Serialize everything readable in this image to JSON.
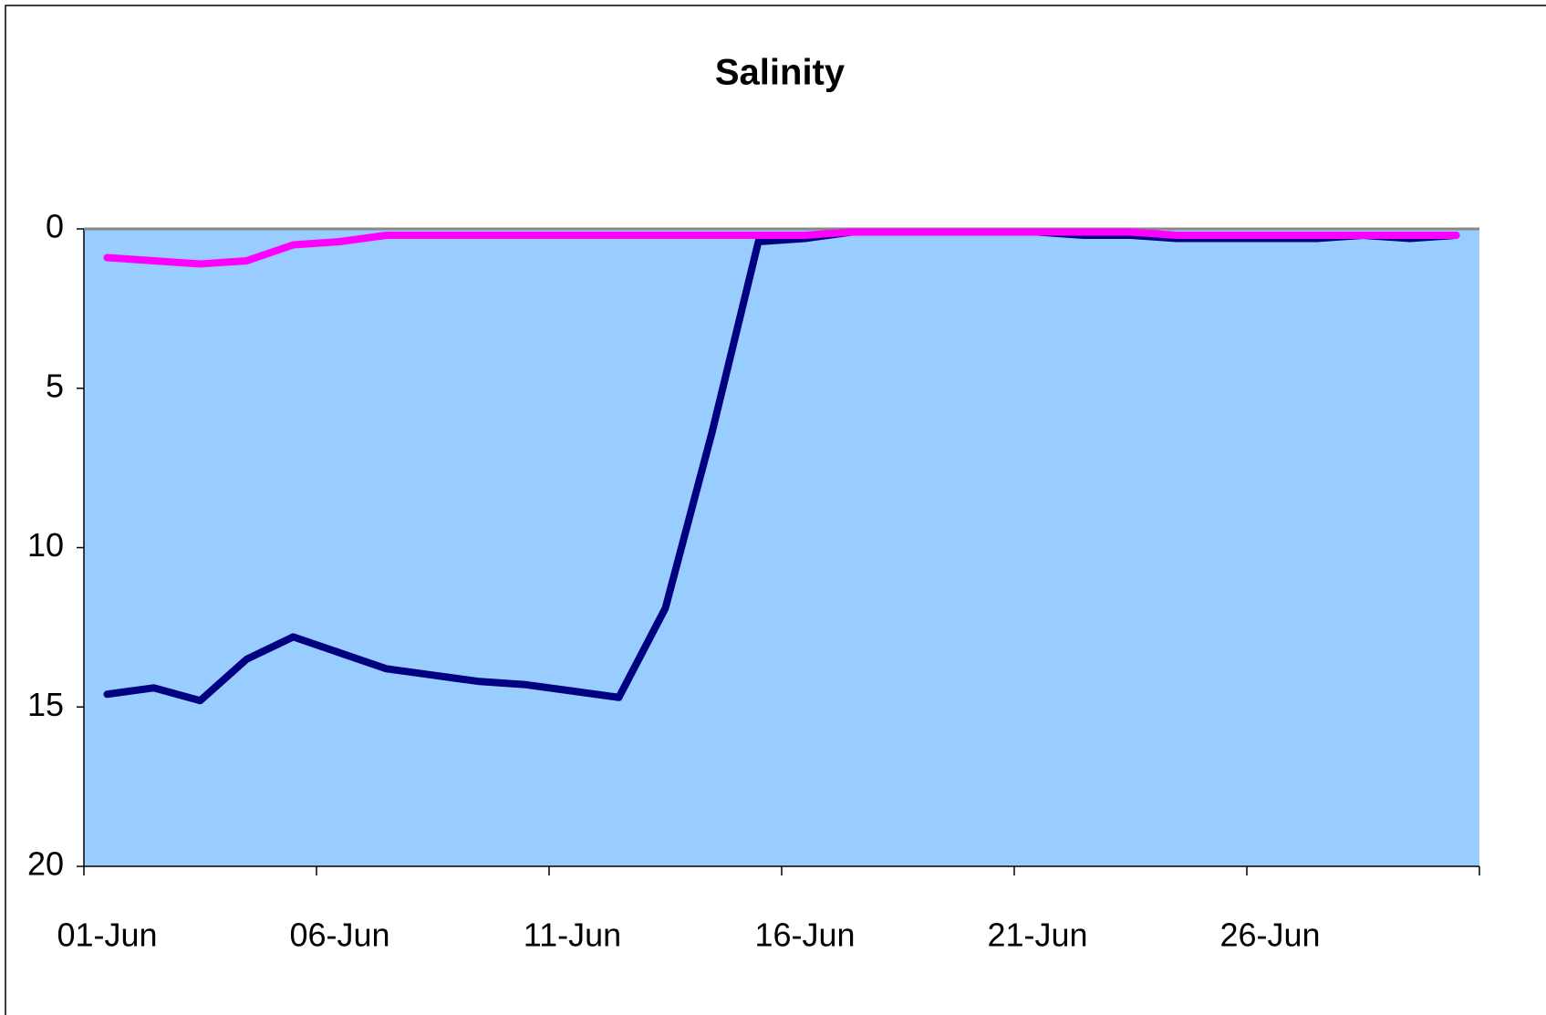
{
  "chart_data": {
    "type": "line",
    "title": "Salinity",
    "categories": [
      "01-Jun",
      null,
      null,
      null,
      null,
      "06-Jun",
      null,
      null,
      null,
      null,
      "11-Jun",
      null,
      null,
      null,
      null,
      "16-Jun",
      null,
      null,
      null,
      null,
      "21-Jun",
      null,
      null,
      null,
      null,
      "26-Jun",
      null,
      null,
      null,
      null
    ],
    "series": [
      {
        "color": "#000080",
        "values": [
          14.6,
          14.4,
          14.8,
          13.5,
          12.8,
          13.3,
          13.8,
          14.0,
          14.2,
          14.3,
          14.5,
          14.7,
          11.9,
          6.4,
          0.4,
          0.3,
          0.1,
          0.1,
          0.1,
          0.1,
          0.1,
          0.2,
          0.2,
          0.3,
          0.3,
          0.3,
          0.3,
          0.2,
          0.3,
          0.2
        ]
      },
      {
        "color": "#ff00ff",
        "values": [
          0.9,
          1.0,
          1.1,
          1.0,
          0.5,
          0.4,
          0.2,
          0.2,
          0.2,
          0.2,
          0.2,
          0.2,
          0.2,
          0.2,
          0.2,
          0.2,
          0.1,
          0.1,
          0.1,
          0.1,
          0.1,
          0.1,
          0.1,
          0.2,
          0.2,
          0.2,
          0.2,
          0.2,
          0.2,
          0.2
        ]
      }
    ],
    "ylim": [
      0,
      20
    ],
    "yticks": [
      0,
      5,
      10,
      15,
      20
    ],
    "y_inverted": true,
    "plot_background": "#99ccff",
    "grid": false
  }
}
